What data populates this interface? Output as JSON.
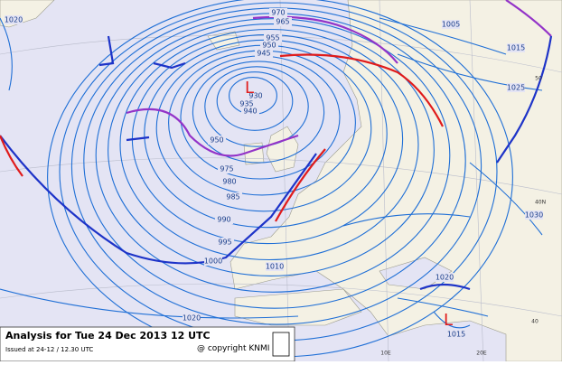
{
  "title": "Analysis for Tue 24 Dec 2013 12 UTC",
  "issued": "Issued at 24-12 / 12.30 UTC",
  "copyright": "@ copyright KNMI",
  "isobar_labels": [
    "1020",
    "970",
    "965",
    "955",
    "950",
    "945",
    "930",
    "935",
    "940",
    "950",
    "975",
    "980",
    "985",
    "990",
    "995",
    "1000",
    "1005",
    "1010",
    "1015",
    "1025",
    "1030",
    "1020",
    "1020",
    "1015"
  ],
  "lows": [
    "L",
    "L"
  ],
  "grid_labels": [
    "50",
    "40N",
    "40",
    "10E",
    "20E"
  ]
}
